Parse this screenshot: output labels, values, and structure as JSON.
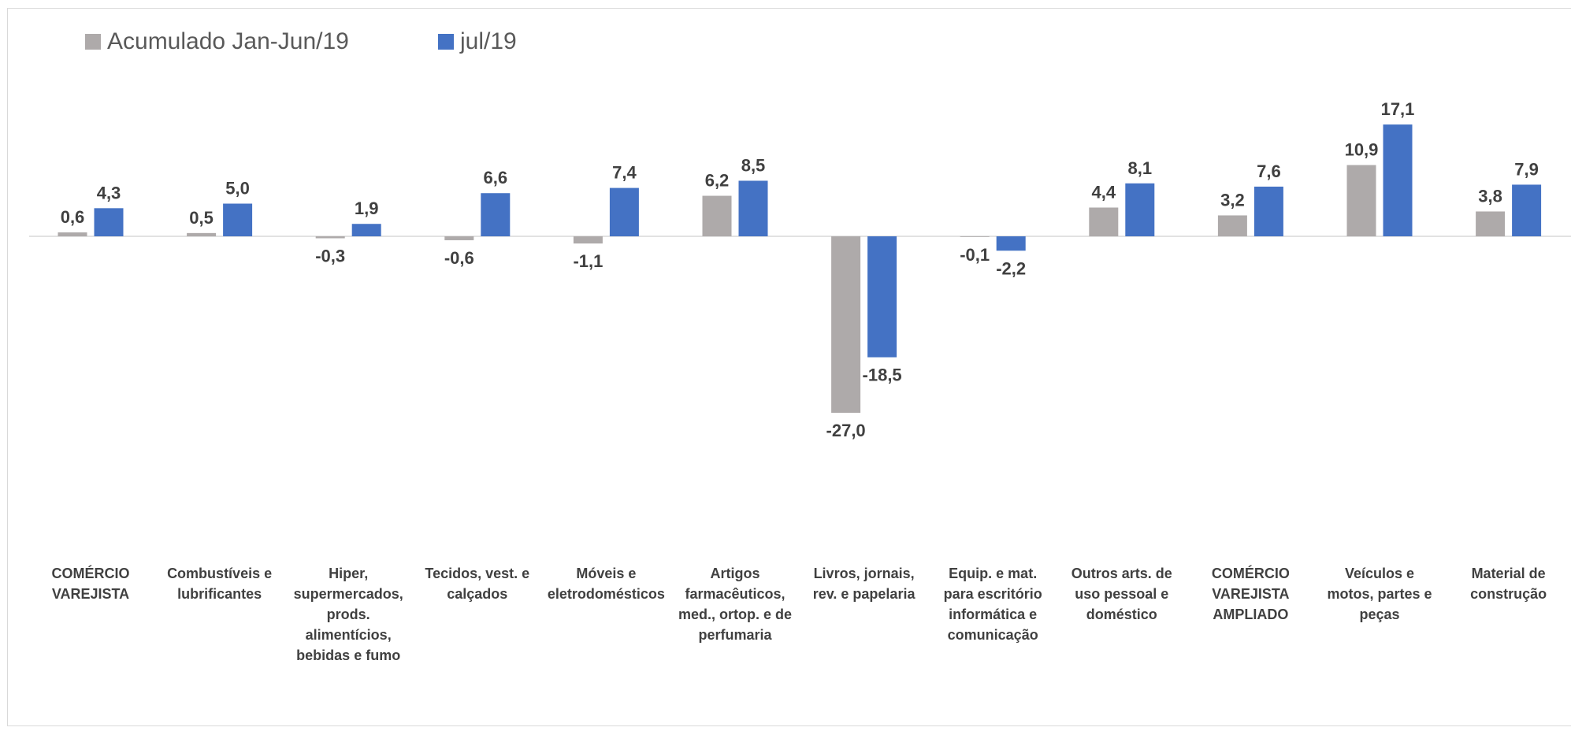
{
  "legend": [
    {
      "name": "Acumulado Jan-Jun/19",
      "color": "#aeaaaa"
    },
    {
      "name": "jul/19",
      "color": "#4472c4"
    }
  ],
  "chart_data": {
    "type": "bar",
    "categories": [
      "COMÉRCIO VAREJISTA",
      "Combustíveis e lubrificantes",
      "Hiper, supermercados, prods. alimentícios, bebidas e fumo",
      "Tecidos, vest. e calçados",
      "Móveis e eletrodomésticos",
      "Artigos farmacêuticos, med., ortop. e de perfumaria",
      "Livros, jornais, rev. e papelaria",
      "Equip. e mat. para escritório informática e comunicação",
      "Outros arts. de uso pessoal e doméstico",
      "COMÉRCIO VAREJISTA AMPLIADO",
      "Veículos e motos, partes e peças",
      "Material de construção"
    ],
    "category_lines": [
      [
        "COMÉRCIO",
        "VAREJISTA"
      ],
      [
        "Combustíveis e",
        "lubrificantes"
      ],
      [
        "Hiper,",
        "supermercados,",
        "prods.",
        "alimentícios,",
        "bebidas e fumo"
      ],
      [
        "Tecidos, vest. e",
        "calçados"
      ],
      [
        "Móveis e",
        "eletrodomésticos"
      ],
      [
        "Artigos",
        "farmacêuticos,",
        "med., ortop. e de",
        "perfumaria"
      ],
      [
        "Livros, jornais,",
        "rev. e papelaria"
      ],
      [
        "Equip. e mat.",
        "para escritório",
        "informática e",
        "comunicação"
      ],
      [
        "Outros arts. de",
        "uso pessoal e",
        "doméstico"
      ],
      [
        "COMÉRCIO",
        "VAREJISTA",
        "AMPLIADO"
      ],
      [
        "Veículos e",
        "motos, partes e",
        "peças"
      ],
      [
        "Material de",
        "construção"
      ]
    ],
    "series": [
      {
        "name": "Acumulado Jan-Jun/19",
        "color": "#aeaaaa",
        "values": [
          0.6,
          0.5,
          -0.3,
          -0.6,
          -1.1,
          6.2,
          -27.0,
          -0.1,
          4.4,
          3.2,
          10.9,
          3.8
        ],
        "labels": [
          "0,6",
          "0,5",
          "-0,3",
          "-0,6",
          "-1,1",
          "6,2",
          "-27,0",
          "-0,1",
          "4,4",
          "3,2",
          "10,9",
          "3,8"
        ]
      },
      {
        "name": "jul/19",
        "color": "#4472c4",
        "values": [
          4.3,
          5.0,
          1.9,
          6.6,
          7.4,
          8.5,
          -18.5,
          -2.2,
          8.1,
          7.6,
          17.1,
          7.9
        ],
        "labels": [
          "4,3",
          "5,0",
          "1,9",
          "6,6",
          "7,4",
          "8,5",
          "-18,5",
          "-2,2",
          "8,1",
          "7,6",
          "17,1",
          "7,9"
        ]
      }
    ],
    "ylim": [
      -27,
      17.1
    ],
    "grid": false,
    "legend_position": "top-left"
  }
}
